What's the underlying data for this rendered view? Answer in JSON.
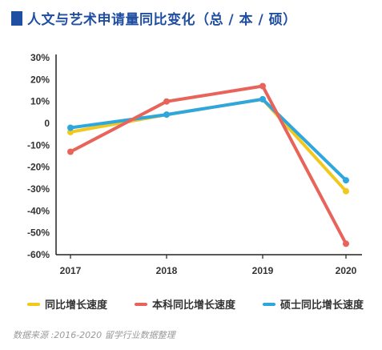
{
  "title": "人文与艺术申请量同比变化（总 / 本 / 硕）",
  "source_note": "数据来源 :2016-2020 留学行业数据整理",
  "colors": {
    "title": "#1f4ea3",
    "total": "#f2c81d",
    "undergrad": "#e8645a",
    "master": "#2ea7de"
  },
  "chart_data": {
    "type": "line",
    "title": "人文与艺术申请量同比变化（总 / 本 / 硕）",
    "xlabel": "",
    "ylabel": "",
    "categories": [
      "2017",
      "2018",
      "2019",
      "2020"
    ],
    "ylim": [
      -60,
      30
    ],
    "yticks": [
      30,
      20,
      10,
      0,
      -10,
      -20,
      -30,
      -40,
      -50,
      -60
    ],
    "ytick_labels": [
      "30%",
      "20%",
      "10%",
      "0",
      "-10%",
      "-20%",
      "-30%",
      "-40%",
      "-50%",
      "-60%"
    ],
    "grid": false,
    "legend_position": "bottom",
    "series": [
      {
        "name": "同比增长速度",
        "color": "#f2c81d",
        "values": [
          -4,
          4,
          11,
          -31
        ]
      },
      {
        "name": "本科同比增长速度",
        "color": "#e8645a",
        "values": [
          -13,
          10,
          17,
          -55
        ]
      },
      {
        "name": "硕士同比增长速度",
        "color": "#2ea7de",
        "values": [
          -2,
          4,
          11,
          -26
        ]
      }
    ]
  }
}
